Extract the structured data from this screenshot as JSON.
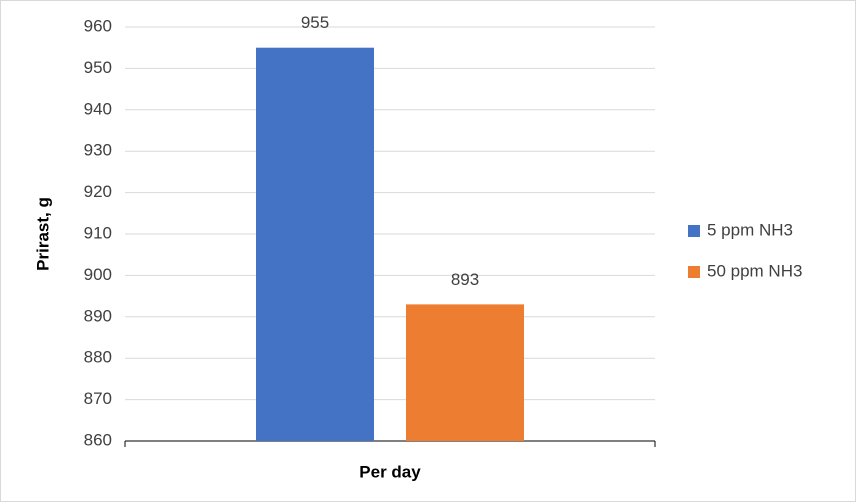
{
  "chart_data": {
    "type": "bar",
    "y_label": "Prirast, g",
    "categories": [
      "Per day"
    ],
    "series": [
      {
        "name": "5 ppm NH3",
        "color": "#4472c4",
        "values": [
          955
        ]
      },
      {
        "name": "50 ppm NH3",
        "color": "#ed7d31",
        "values": [
          893
        ]
      }
    ],
    "ylim": [
      860,
      960
    ],
    "yticks": [
      860,
      870,
      880,
      890,
      900,
      910,
      920,
      930,
      940,
      950,
      960
    ],
    "grid": true,
    "legend": "right"
  }
}
